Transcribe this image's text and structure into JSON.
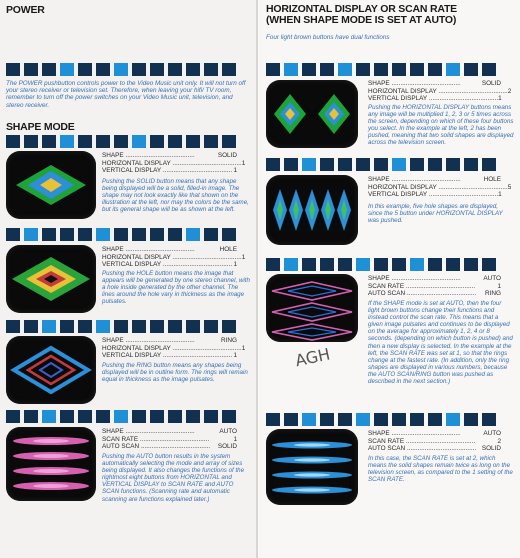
{
  "colors": {
    "dark_block": "#12304f",
    "light_block": "#1f8fd6",
    "italic_text": "#3a6fb0"
  },
  "power": {
    "heading": "POWER",
    "text": "The POWER pushbutton controls power to the Video Music unit only. It will not turn off your stereo receiver or television set. Therefore, when leaving your hifi/ TV room, remember to turn off the power switches on your Video Music unit, television, and stereo receiver."
  },
  "shape_mode": {
    "heading": "SHAPE MODE",
    "items": [
      {
        "rows": [
          [
            "SHAPE",
            "SOLID"
          ],
          [
            "HORIZONTAL DISPLAY",
            "1"
          ],
          [
            "VERTICAL DISPLAY",
            "1"
          ]
        ],
        "text": "Pushing the SOLID button means that any shape being displayed will be a solid, filled-in image. The shape may not look exactly like that shown on the illustration at the left, nor may the colors be the same, but its general shape will be as shown at the left."
      },
      {
        "rows": [
          [
            "SHAPE",
            "HOLE"
          ],
          [
            "HORIZONTAL DISPLAY",
            "1"
          ],
          [
            "VERTICAL DISPLAY",
            "1"
          ]
        ],
        "text": "Pushing the HOLE button means the image that appears will be generated by one stereo channel, with a hole inside generated by the other channel. The lines around the hole vary in thickness as the image pulsates."
      },
      {
        "rows": [
          [
            "SHAPE",
            "RING"
          ],
          [
            "HORIZONTAL DISPLAY",
            "1"
          ],
          [
            "VERTICAL DISPLAY",
            "1"
          ]
        ],
        "text": "Pushing the RING button means any shapes being displayed will be in outline form. The rings will remain equal in thickness as the image pulsates."
      },
      {
        "rows": [
          [
            "SHAPE",
            "AUTO"
          ],
          [
            "SCAN RATE",
            "1"
          ],
          [
            "AUTO SCAN",
            "SOLID"
          ]
        ],
        "text": "Pushing the AUTO button results in the system automatically selecting the mode and array of sizes being displayed. It also changes the functions of the rightmost eight buttons from HORIZONTAL and VERTICAL DISPLAY to SCAN RATE and AUTO SCAN functions. (Scanning rate and automatic scanning are functions explained later.)"
      }
    ]
  },
  "hdisplay": {
    "heading1": "HORIZONTAL DISPLAY OR SCAN RATE",
    "heading2": "(WHEN SHAPE MODE IS SET AT AUTO)",
    "subtitle": "Four light brown buttons have dual functions",
    "items": [
      {
        "rows": [
          [
            "SHAPE",
            "SOLID"
          ],
          [
            "HORIZONTAL DISPLAY",
            "2"
          ],
          [
            "VERTICAL DISPLAY",
            "1"
          ]
        ],
        "text": "Pushing the HORIZONTAL DISPLAY buttons means any image will be multiplied 1, 2, 3 or 5 times across the screen, depending on which of these four buttons you select. In the example at the left, 2 has been pushed, meaning that two solid shapes are displayed across the television screen."
      },
      {
        "rows": [
          [
            "SHAPE",
            "HOLE"
          ],
          [
            "HORIZONTAL DISPLAY",
            "5"
          ],
          [
            "VERTICAL DISPLAY",
            "1"
          ]
        ],
        "text": "In this example, five hole shapes are displayed, since the 5 button under HORIZONTAL DISPLAY was pushed."
      },
      {
        "rows": [
          [
            "SHAPE",
            "AUTO"
          ],
          [
            "SCAN RATE",
            "1"
          ],
          [
            "AUTO SCAN",
            "RING"
          ]
        ],
        "text": "If the SHAPE mode is set at AUTO, then the four light brown buttons change their functions and instead control the scan rate. This means that a given image pulsates and continues to be displayed on the average for approximately 1, 2, 4 or 8 seconds. (depending on which button is pushed) and then a new display is selected. In the example at the left, the SCAN RATE was set at 1, so that the rings change at the fastest rate. (In addition, only the ring shapes are displayed in various numbers, because the AUTO SCAN/RING button was pushed as described in the next section.)"
      },
      {
        "rows": [
          [
            "SHAPE",
            "AUTO"
          ],
          [
            "SCAN RATE",
            "2"
          ],
          [
            "AUTO SCAN",
            "SOLID"
          ]
        ],
        "text": "In this case, the SCAN RATE is set at 2, which means the solid shapes remain twice as long on the television screen, as compared to the 1 setting of the SCAN RATE."
      }
    ]
  },
  "annotation": "AGH"
}
